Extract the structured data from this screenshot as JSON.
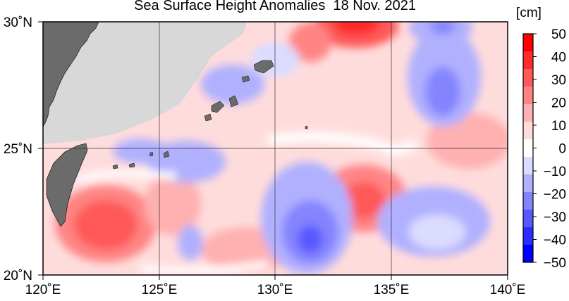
{
  "title": "Sea Surface Height Anomalies  18 Nov. 2021",
  "unit": "[cm]",
  "x_ticks": [
    "120˚E",
    "125˚E",
    "130˚E",
    "135˚E",
    "140˚E"
  ],
  "y_ticks": [
    "30˚N",
    "25˚N",
    "20˚N"
  ],
  "colorbar": {
    "labels": [
      "50",
      "40",
      "30",
      "20",
      "10",
      "0",
      "−10",
      "−20",
      "−30",
      "−40",
      "−50"
    ],
    "colors": [
      "#ff0000",
      "#ff2c2c",
      "#ff5858",
      "#ff8484",
      "#ffb0b0",
      "#ffdcdc",
      "#ffffff",
      "#dcdcff",
      "#b0b0ff",
      "#8484ff",
      "#5858ff",
      "#2c2cff",
      "#0000ff"
    ]
  },
  "map_colors": {
    "land": "#6b6b6b",
    "no_data": "#d8d8d8",
    "grid": "#333333"
  }
}
